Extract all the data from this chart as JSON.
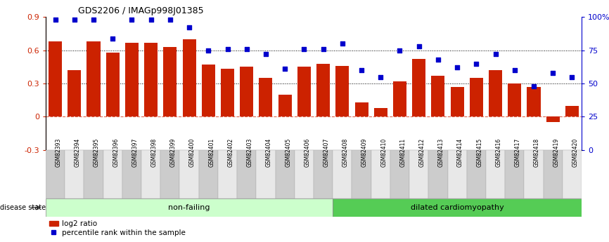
{
  "title": "GDS2206 / IMAGp998J01385",
  "samples": [
    "GSM82393",
    "GSM82394",
    "GSM82395",
    "GSM82396",
    "GSM82397",
    "GSM82398",
    "GSM82399",
    "GSM82400",
    "GSM82401",
    "GSM82402",
    "GSM82403",
    "GSM82404",
    "GSM82405",
    "GSM82406",
    "GSM82407",
    "GSM82408",
    "GSM82409",
    "GSM82410",
    "GSM82411",
    "GSM82412",
    "GSM82413",
    "GSM82414",
    "GSM82415",
    "GSM82416",
    "GSM82417",
    "GSM82418",
    "GSM82419",
    "GSM82420"
  ],
  "log2_ratio": [
    0.68,
    0.42,
    0.68,
    0.58,
    0.67,
    0.67,
    0.63,
    0.7,
    0.47,
    0.43,
    0.45,
    0.35,
    0.2,
    0.45,
    0.48,
    0.46,
    0.13,
    0.08,
    0.32,
    0.52,
    0.37,
    0.27,
    0.35,
    0.42,
    0.3,
    0.27,
    -0.05,
    0.1
  ],
  "percentile": [
    98,
    98,
    98,
    84,
    98,
    98,
    98,
    92,
    75,
    76,
    76,
    72,
    61,
    76,
    76,
    80,
    60,
    55,
    75,
    78,
    68,
    62,
    65,
    72,
    60,
    48,
    58,
    55
  ],
  "nonfailing_count": 15,
  "dilated_count": 13,
  "bar_color": "#cc2200",
  "dot_color": "#0000cc",
  "ylim_left": [
    -0.3,
    0.9
  ],
  "ylim_right": [
    0,
    100
  ],
  "yticks_left": [
    -0.3,
    0.0,
    0.3,
    0.6,
    0.9
  ],
  "yticks_right": [
    0,
    25,
    50,
    75,
    100
  ],
  "ytick_labels_right": [
    "0",
    "25",
    "50",
    "75",
    "100%"
  ],
  "hlines_dotted": [
    0.3,
    0.6
  ],
  "group1_label": "non-failing",
  "group2_label": "dilated cardiomyopathy",
  "group1_color": "#ccffcc",
  "group2_color": "#55cc55",
  "disease_state_label": "disease state",
  "legend_bar_label": "log2 ratio",
  "legend_dot_label": "percentile rank within the sample",
  "xtick_bg_color": "#cccccc",
  "xtick_bg_light": "#e8e8e8"
}
